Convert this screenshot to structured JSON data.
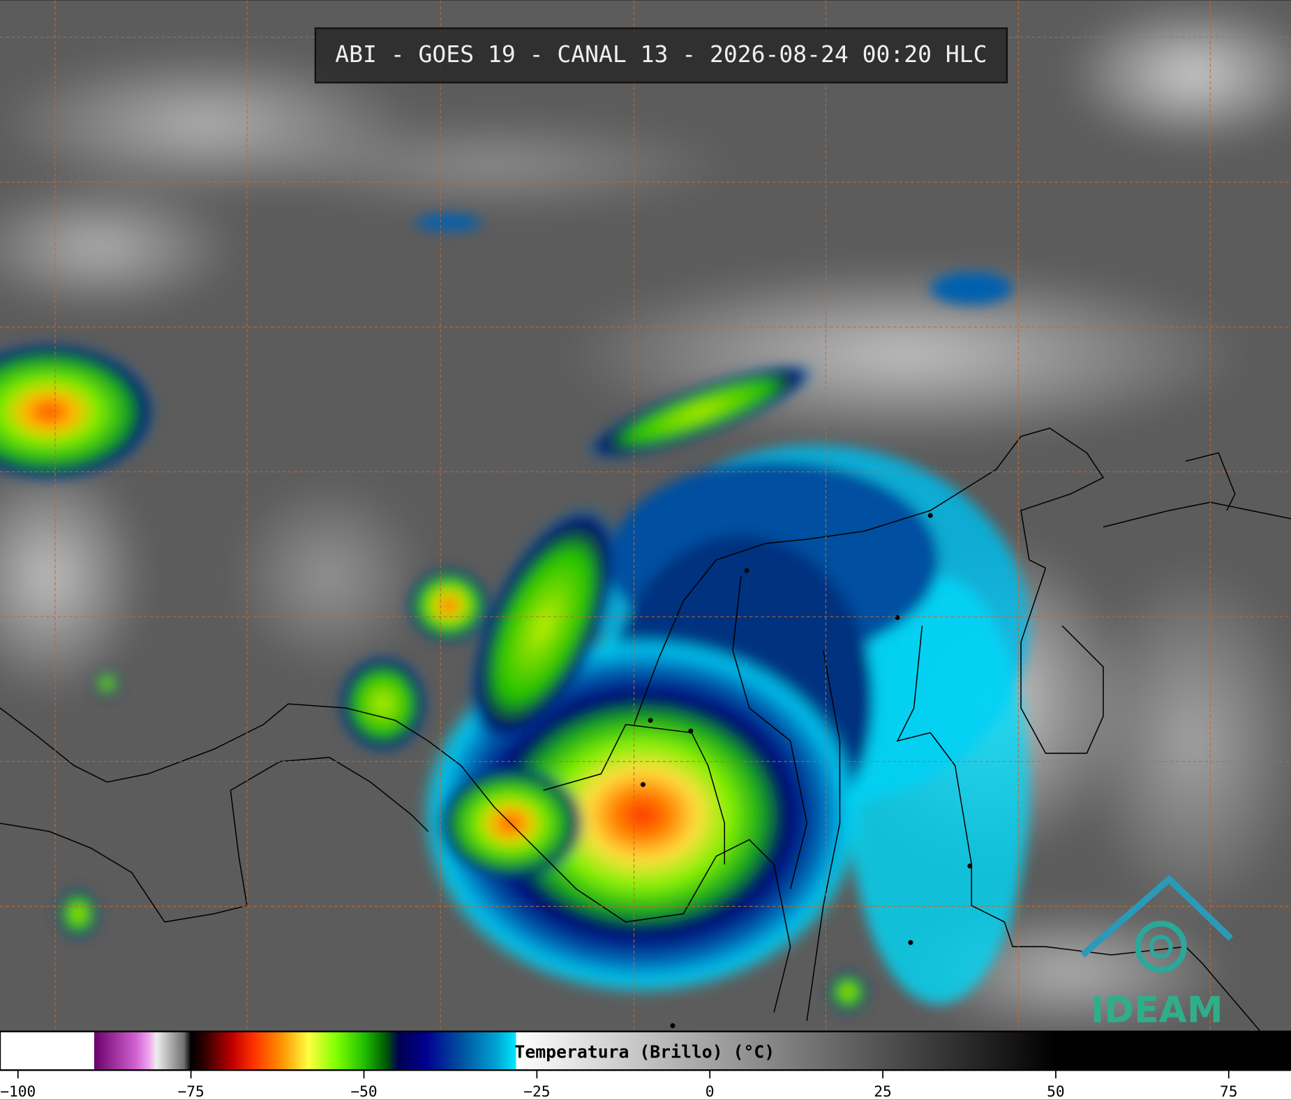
{
  "header": {
    "title": "ABI - GOES 19 - CANAL 13 - 2026-08-24 00:20 HLC"
  },
  "colorbar": {
    "label": "Temperatura (Brillo) (°C)",
    "range": [
      -102.6,
      84
    ],
    "ticks": [
      {
        "value": -100,
        "label": "−100"
      },
      {
        "value": -75,
        "label": "−75"
      },
      {
        "value": -50,
        "label": "−50"
      },
      {
        "value": -25,
        "label": "−25"
      },
      0,
      25,
      50,
      75
    ],
    "stops": [
      [
        -102.6,
        "#ffffff"
      ],
      [
        -89,
        "#ffffff"
      ],
      [
        -89,
        "#6a006a"
      ],
      [
        -83,
        "#d060d0"
      ],
      [
        -81,
        "#f0a8f0"
      ],
      [
        -80,
        "#eeeeee"
      ],
      [
        -76,
        "#707070"
      ],
      [
        -75,
        "#000000"
      ],
      [
        -73,
        "#300000"
      ],
      [
        -69,
        "#c00000"
      ],
      [
        -66,
        "#ff3000"
      ],
      [
        -62,
        "#ff9000"
      ],
      [
        -58,
        "#ffff40"
      ],
      [
        -54,
        "#80ff00"
      ],
      [
        -50,
        "#20c000"
      ],
      [
        -47,
        "#006000"
      ],
      [
        -45,
        "#000050"
      ],
      [
        -41,
        "#000090"
      ],
      [
        -36,
        "#0050a0"
      ],
      [
        -31,
        "#00a0d0"
      ],
      [
        -28,
        "#00e8ff"
      ],
      [
        -28,
        "#ffffff"
      ],
      [
        50,
        "#000000"
      ],
      [
        84,
        "#000000"
      ]
    ]
  },
  "logo": {
    "text": "IDEAM"
  }
}
